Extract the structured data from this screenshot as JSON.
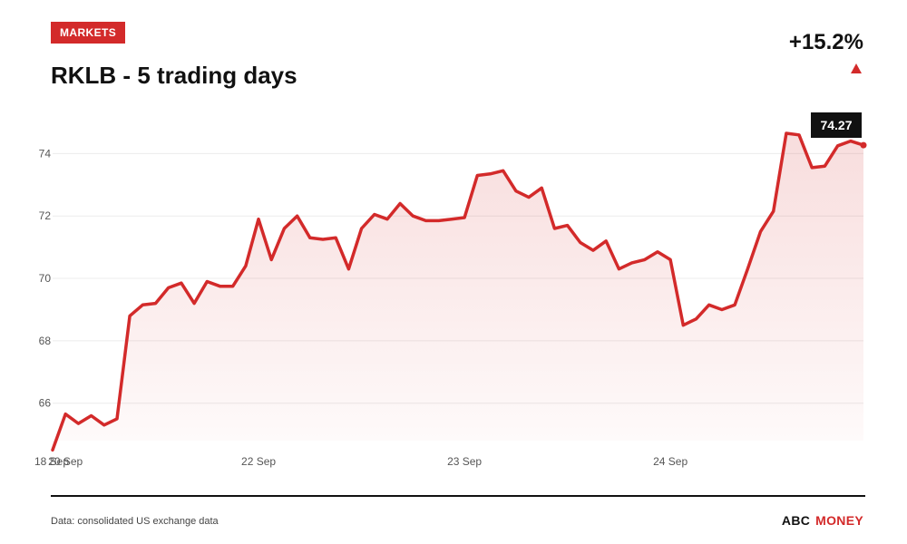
{
  "header": {
    "badge": "MARKETS",
    "title": "RKLB - 5 trading days",
    "change": "+15.2%"
  },
  "footer": {
    "source": "Data: consolidated US exchange data",
    "brand_part1": "ABC",
    "brand_part2": "MONEY"
  },
  "colors": {
    "accent": "#d32a2a",
    "text": "#111111",
    "axis_text": "#555555"
  },
  "icons": {
    "trend": "triangle-up-icon"
  },
  "chart_data": {
    "type": "line",
    "title": "RKLB - 5 trading days",
    "xlabel": "",
    "ylabel": "",
    "ylim": [
      64.8,
      75.0
    ],
    "yticks": [
      66,
      68,
      70,
      72,
      74
    ],
    "xticks": [
      {
        "index": 0,
        "label": "18 Sep"
      },
      {
        "index": 1,
        "label": "20 Sep"
      },
      {
        "index": 16,
        "label": "22 Sep"
      },
      {
        "index": 32,
        "label": "23 Sep"
      },
      {
        "index": 48,
        "label": "24 Sep"
      }
    ],
    "grid": true,
    "legend": "none",
    "last_value_label": "74.27",
    "series": [
      {
        "values": [
          64.5,
          65.65,
          65.35,
          65.6,
          65.3,
          65.5,
          68.8,
          69.15,
          69.2,
          69.7,
          69.85,
          69.2,
          69.9,
          69.75,
          69.75,
          70.4,
          71.9,
          70.6,
          71.6,
          72.0,
          71.3,
          71.25,
          71.3,
          70.3,
          71.6,
          72.05,
          71.9,
          72.4,
          72.0,
          71.85,
          71.85,
          71.9,
          71.95,
          73.3,
          73.35,
          73.45,
          72.8,
          72.6,
          72.9,
          71.6,
          71.7,
          71.15,
          70.9,
          71.2,
          70.3,
          70.5,
          70.6,
          70.85,
          70.6,
          68.5,
          68.7,
          69.15,
          69.0,
          69.15,
          70.3,
          71.5,
          72.15,
          74.65,
          74.6,
          73.55,
          73.6,
          74.25,
          74.4,
          74.27
        ]
      }
    ]
  }
}
